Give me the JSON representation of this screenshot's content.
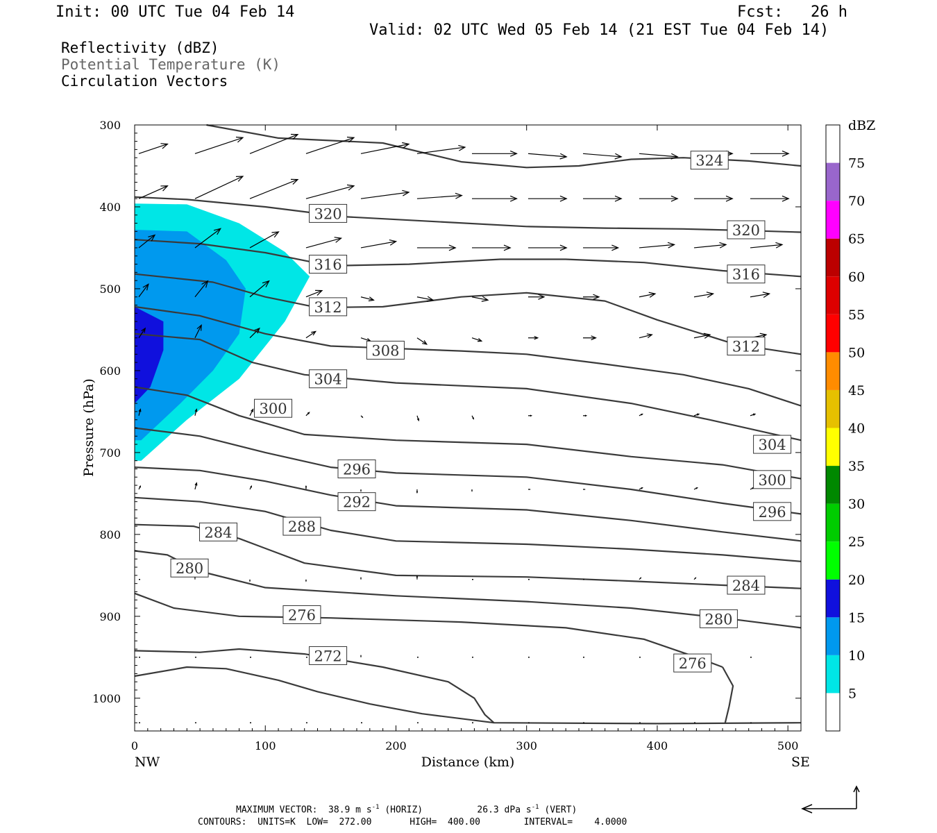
{
  "header": {
    "init": "Init: 00 UTC Tue 04 Feb 14",
    "fcst": "Fcst:   26 h",
    "valid": "Valid: 02 UTC Wed 05 Feb 14 (21 EST Tue 04 Feb 14)"
  },
  "legend": {
    "line1": "Reflectivity (dBZ)",
    "line2": "Potential Temperature (K)",
    "line3": "Circulation Vectors"
  },
  "footer": {
    "line1_a": "MAXIMUM VECTOR:  38.9 m s",
    "line1_b": "(HORIZ)",
    "line1_c": "26.3 dPa s",
    "line1_d": "(VERT)",
    "line2": "CONTOURS:  UNITS=K  LOW=  272.00       HIGH=  400.00        INTERVAL=    4.0000"
  },
  "colors": {
    "contour": "#3a3a3a",
    "dbz_5": "#00e6e6",
    "dbz_10": "#0099ee",
    "dbz_15": "#1010dd",
    "dbz_20": "#00ff00",
    "dbz_25": "#00cc00",
    "dbz_30": "#008800",
    "dbz_35": "#ffff00",
    "dbz_40": "#e6c000",
    "dbz_45": "#ff8c00",
    "dbz_50": "#ff0000",
    "dbz_55": "#dd0000",
    "dbz_60": "#bb0000",
    "dbz_65": "#ff00ff",
    "dbz_70": "#9966cc",
    "dbz_75": "#ffffff"
  },
  "chart_data": {
    "type": "contour",
    "xlabel": "Distance (km)",
    "ylabel": "Pressure (hPa)",
    "xlim": [
      0,
      510
    ],
    "ylim": [
      300,
      1040
    ],
    "xticks": [
      0,
      100,
      200,
      300,
      400,
      500
    ],
    "yticks": [
      300,
      400,
      500,
      600,
      700,
      800,
      900,
      1000
    ],
    "x_end_labels": {
      "left": "NW",
      "right": "SE"
    },
    "colorbar": {
      "title": "dBZ",
      "levels": [
        5,
        10,
        15,
        20,
        25,
        30,
        35,
        40,
        45,
        50,
        55,
        60,
        65,
        70,
        75
      ]
    },
    "reflectivity_regions": [
      {
        "dbz": 5,
        "polygon": [
          [
            0,
            396
          ],
          [
            40,
            397
          ],
          [
            80,
            420
          ],
          [
            115,
            455
          ],
          [
            134,
            485
          ],
          [
            115,
            540
          ],
          [
            80,
            610
          ],
          [
            40,
            660
          ],
          [
            5,
            710
          ],
          [
            0,
            710
          ]
        ]
      },
      {
        "dbz": 10,
        "polygon": [
          [
            0,
            428
          ],
          [
            40,
            430
          ],
          [
            70,
            465
          ],
          [
            85,
            500
          ],
          [
            80,
            555
          ],
          [
            60,
            600
          ],
          [
            35,
            640
          ],
          [
            5,
            685
          ],
          [
            0,
            685
          ]
        ]
      },
      {
        "dbz": 15,
        "polygon": [
          [
            0,
            522
          ],
          [
            22,
            540
          ],
          [
            22,
            575
          ],
          [
            12,
            620
          ],
          [
            0,
            640
          ]
        ]
      }
    ],
    "contours": [
      {
        "theta": 324,
        "points": [
          [
            55,
            300
          ],
          [
            110,
            316
          ],
          [
            190,
            322
          ],
          [
            250,
            345
          ],
          [
            300,
            352
          ],
          [
            340,
            350
          ],
          [
            380,
            342
          ],
          [
            420,
            340
          ],
          [
            470,
            344
          ],
          [
            510,
            350
          ]
        ]
      },
      {
        "theta": 320,
        "points": [
          [
            0,
            388
          ],
          [
            40,
            391
          ],
          [
            100,
            400
          ],
          [
            160,
            412
          ],
          [
            230,
            418
          ],
          [
            300,
            424
          ],
          [
            360,
            426
          ],
          [
            420,
            427
          ],
          [
            470,
            429
          ],
          [
            510,
            431
          ]
        ]
      },
      {
        "theta": 316,
        "points": [
          [
            0,
            440
          ],
          [
            50,
            445
          ],
          [
            100,
            456
          ],
          [
            150,
            472
          ],
          [
            210,
            470
          ],
          [
            280,
            464
          ],
          [
            330,
            464
          ],
          [
            390,
            468
          ],
          [
            450,
            478
          ],
          [
            510,
            485
          ]
        ]
      },
      {
        "theta": 312,
        "points": [
          [
            0,
            482
          ],
          [
            60,
            492
          ],
          [
            100,
            510
          ],
          [
            140,
            523
          ],
          [
            190,
            522
          ],
          [
            250,
            510
          ],
          [
            300,
            505
          ],
          [
            360,
            515
          ],
          [
            400,
            538
          ],
          [
            460,
            568
          ],
          [
            510,
            580
          ]
        ]
      },
      {
        "theta": 308,
        "points": [
          [
            0,
            522
          ],
          [
            50,
            533
          ],
          [
            100,
            555
          ],
          [
            150,
            570
          ],
          [
            250,
            576
          ],
          [
            300,
            580
          ],
          [
            360,
            592
          ],
          [
            420,
            605
          ],
          [
            470,
            622
          ],
          [
            510,
            643
          ]
        ]
      },
      {
        "theta": 304,
        "points": [
          [
            0,
            555
          ],
          [
            50,
            562
          ],
          [
            90,
            590
          ],
          [
            130,
            605
          ],
          [
            200,
            615
          ],
          [
            300,
            622
          ],
          [
            380,
            640
          ],
          [
            440,
            660
          ],
          [
            510,
            685
          ]
        ]
      },
      {
        "theta": 300,
        "points": [
          [
            0,
            620
          ],
          [
            40,
            630
          ],
          [
            80,
            655
          ],
          [
            130,
            678
          ],
          [
            200,
            685
          ],
          [
            300,
            690
          ],
          [
            380,
            705
          ],
          [
            450,
            715
          ],
          [
            510,
            732
          ]
        ]
      },
      {
        "theta": 296,
        "points": [
          [
            0,
            670
          ],
          [
            50,
            680
          ],
          [
            100,
            700
          ],
          [
            150,
            718
          ],
          [
            200,
            725
          ],
          [
            300,
            730
          ],
          [
            380,
            745
          ],
          [
            450,
            762
          ],
          [
            510,
            775
          ]
        ]
      },
      {
        "theta": 292,
        "points": [
          [
            0,
            718
          ],
          [
            50,
            722
          ],
          [
            100,
            735
          ],
          [
            150,
            752
          ],
          [
            200,
            765
          ],
          [
            300,
            770
          ],
          [
            380,
            783
          ],
          [
            450,
            797
          ],
          [
            510,
            808
          ]
        ]
      },
      {
        "theta": 288,
        "points": [
          [
            0,
            755
          ],
          [
            50,
            760
          ],
          [
            100,
            772
          ],
          [
            150,
            795
          ],
          [
            200,
            808
          ],
          [
            300,
            812
          ],
          [
            380,
            818
          ],
          [
            450,
            825
          ],
          [
            510,
            833
          ]
        ]
      },
      {
        "theta": 284,
        "points": [
          [
            0,
            788
          ],
          [
            45,
            790
          ],
          [
            80,
            805
          ],
          [
            130,
            835
          ],
          [
            200,
            850
          ],
          [
            300,
            852
          ],
          [
            380,
            857
          ],
          [
            450,
            862
          ],
          [
            510,
            866
          ]
        ]
      },
      {
        "theta": 280,
        "points": [
          [
            0,
            820
          ],
          [
            25,
            825
          ],
          [
            50,
            845
          ],
          [
            100,
            865
          ],
          [
            200,
            875
          ],
          [
            300,
            882
          ],
          [
            380,
            890
          ],
          [
            450,
            902
          ],
          [
            510,
            914
          ]
        ]
      },
      {
        "theta": 276,
        "points": [
          [
            0,
            872
          ],
          [
            30,
            890
          ],
          [
            80,
            900
          ],
          [
            150,
            902
          ],
          [
            250,
            907
          ],
          [
            330,
            914
          ],
          [
            390,
            928
          ],
          [
            430,
            950
          ],
          [
            450,
            962
          ]
        ]
      },
      {
        "theta": 272,
        "points": [
          [
            0,
            942
          ],
          [
            50,
            944
          ],
          [
            80,
            940
          ],
          [
            130,
            946
          ],
          [
            190,
            962
          ],
          [
            240,
            980
          ],
          [
            260,
            1000
          ],
          [
            268,
            1020
          ],
          [
            275,
            1030
          ]
        ]
      },
      {
        "theta": 276,
        "points": [
          [
            450,
            962
          ],
          [
            458,
            985
          ],
          [
            455,
            1010
          ],
          [
            452,
            1030
          ]
        ]
      },
      {
        "theta": 272,
        "points": [
          [
            0,
            973
          ],
          [
            40,
            962
          ],
          [
            70,
            964
          ],
          [
            110,
            978
          ],
          [
            140,
            992
          ],
          [
            180,
            1007
          ],
          [
            220,
            1019
          ],
          [
            275,
            1030
          ],
          [
            400,
            1031
          ],
          [
            510,
            1030
          ]
        ]
      }
    ],
    "contour_labels": [
      {
        "text": "324",
        "x": 440,
        "y": 343
      },
      {
        "text": "320",
        "x": 148,
        "y": 408
      },
      {
        "text": "320",
        "x": 468,
        "y": 428
      },
      {
        "text": "316",
        "x": 148,
        "y": 470
      },
      {
        "text": "316",
        "x": 468,
        "y": 482
      },
      {
        "text": "312",
        "x": 148,
        "y": 522
      },
      {
        "text": "312",
        "x": 468,
        "y": 570
      },
      {
        "text": "308",
        "x": 192,
        "y": 575
      },
      {
        "text": "304",
        "x": 148,
        "y": 610
      },
      {
        "text": "304",
        "x": 488,
        "y": 690
      },
      {
        "text": "300",
        "x": 106,
        "y": 646
      },
      {
        "text": "300",
        "x": 488,
        "y": 733
      },
      {
        "text": "296",
        "x": 170,
        "y": 720
      },
      {
        "text": "296",
        "x": 488,
        "y": 772
      },
      {
        "text": "292",
        "x": 170,
        "y": 760
      },
      {
        "text": "288",
        "x": 128,
        "y": 790
      },
      {
        "text": "284",
        "x": 64,
        "y": 797
      },
      {
        "text": "284",
        "x": 468,
        "y": 862
      },
      {
        "text": "280",
        "x": 42,
        "y": 841
      },
      {
        "text": "280",
        "x": 447,
        "y": 903
      },
      {
        "text": "276",
        "x": 128,
        "y": 898
      },
      {
        "text": "276",
        "x": 427,
        "y": 957
      },
      {
        "text": "272",
        "x": 148,
        "y": 948
      }
    ],
    "vector_grid": {
      "x": [
        0,
        43,
        85,
        128,
        170,
        213,
        255,
        298,
        340,
        383,
        425,
        468
      ],
      "y": [
        335,
        390,
        450,
        510,
        560,
        655,
        745,
        855,
        950,
        1030
      ],
      "u": [
        [
          18,
          30,
          30,
          30,
          30,
          30,
          28,
          24,
          24,
          24,
          24,
          24
        ],
        [
          18,
          30,
          30,
          30,
          30,
          28,
          28,
          24,
          24,
          24,
          24,
          24
        ],
        [
          10,
          16,
          18,
          22,
          22,
          24,
          24,
          24,
          22,
          22,
          20,
          20
        ],
        [
          6,
          8,
          12,
          10,
          8,
          10,
          10,
          10,
          10,
          10,
          12,
          12
        ],
        [
          4,
          4,
          6,
          6,
          6,
          6,
          6,
          6,
          8,
          8,
          10,
          10
        ],
        [
          1,
          1,
          2,
          2,
          1,
          1,
          1,
          2,
          2,
          2,
          3,
          3
        ],
        [
          1,
          1,
          1,
          0,
          0,
          0,
          0,
          1,
          1,
          2,
          2,
          2
        ],
        [
          0,
          0,
          0,
          0,
          0,
          0,
          0,
          0,
          0,
          1,
          1,
          1
        ],
        [
          0,
          0,
          0,
          0,
          0,
          0,
          0,
          0,
          0,
          0,
          0,
          0
        ],
        [
          0,
          0,
          0,
          0,
          0,
          0,
          0,
          0,
          0,
          0,
          0,
          0
        ]
      ],
      "v": [
        [
          6,
          10,
          12,
          10,
          6,
          4,
          0,
          -2,
          -2,
          -2,
          0,
          0
        ],
        [
          8,
          14,
          12,
          8,
          4,
          2,
          0,
          0,
          0,
          0,
          0,
          0
        ],
        [
          8,
          12,
          10,
          6,
          4,
          0,
          0,
          0,
          0,
          2,
          2,
          2
        ],
        [
          8,
          10,
          10,
          4,
          -2,
          -2,
          -2,
          0,
          0,
          2,
          2,
          2
        ],
        [
          6,
          8,
          6,
          4,
          -2,
          -4,
          -2,
          0,
          0,
          2,
          2,
          2
        ],
        [
          4,
          4,
          4,
          2,
          -1,
          -3,
          -2,
          0,
          0,
          1,
          1,
          1
        ],
        [
          2,
          4,
          2,
          2,
          -1,
          -2,
          -1,
          0,
          0,
          1,
          1,
          1
        ],
        [
          0,
          2,
          -1,
          -1,
          1,
          2,
          0,
          0,
          0,
          1,
          1,
          1
        ],
        [
          0,
          0,
          0,
          0,
          1,
          0,
          0,
          0,
          0,
          0,
          0,
          0
        ],
        [
          0,
          0,
          0,
          0,
          0,
          0,
          0,
          0,
          0,
          0,
          0,
          0
        ]
      ]
    }
  }
}
